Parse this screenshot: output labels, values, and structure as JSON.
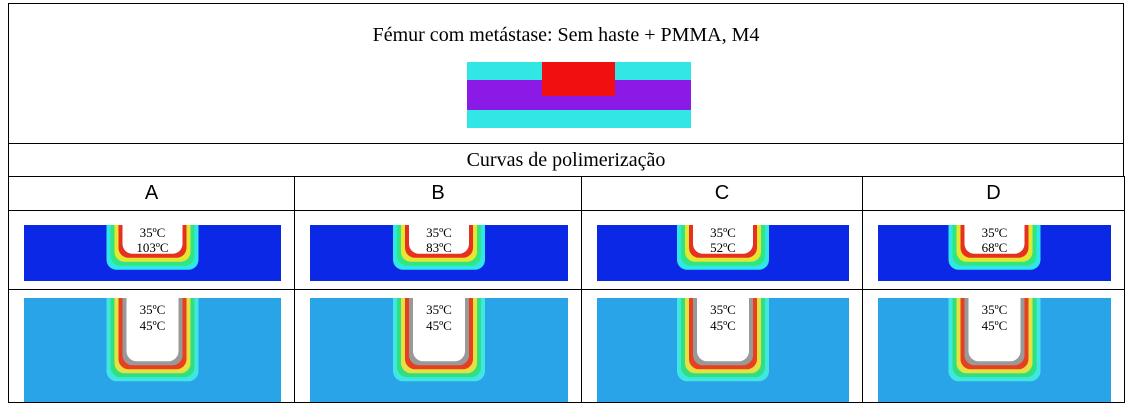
{
  "header": {
    "title": "Fémur com metástase: Sem haste + PMMA, M4"
  },
  "section_title": "Curvas de polimerização",
  "columns": [
    "A",
    "B",
    "C",
    "D"
  ],
  "rows": [
    [
      {
        "top": "35ºC",
        "bottom": "103ºC"
      },
      {
        "top": "35ºC",
        "bottom": "83ºC"
      },
      {
        "top": "35ºC",
        "bottom": "52ºC"
      },
      {
        "top": "35ºC",
        "bottom": "68ºC"
      }
    ],
    [
      {
        "top": "35ºC",
        "bottom": "45ºC"
      },
      {
        "top": "35ºC",
        "bottom": "45ºC"
      },
      {
        "top": "35ºC",
        "bottom": "45ºC"
      },
      {
        "top": "35ºC",
        "bottom": "45ºC"
      }
    ]
  ]
}
